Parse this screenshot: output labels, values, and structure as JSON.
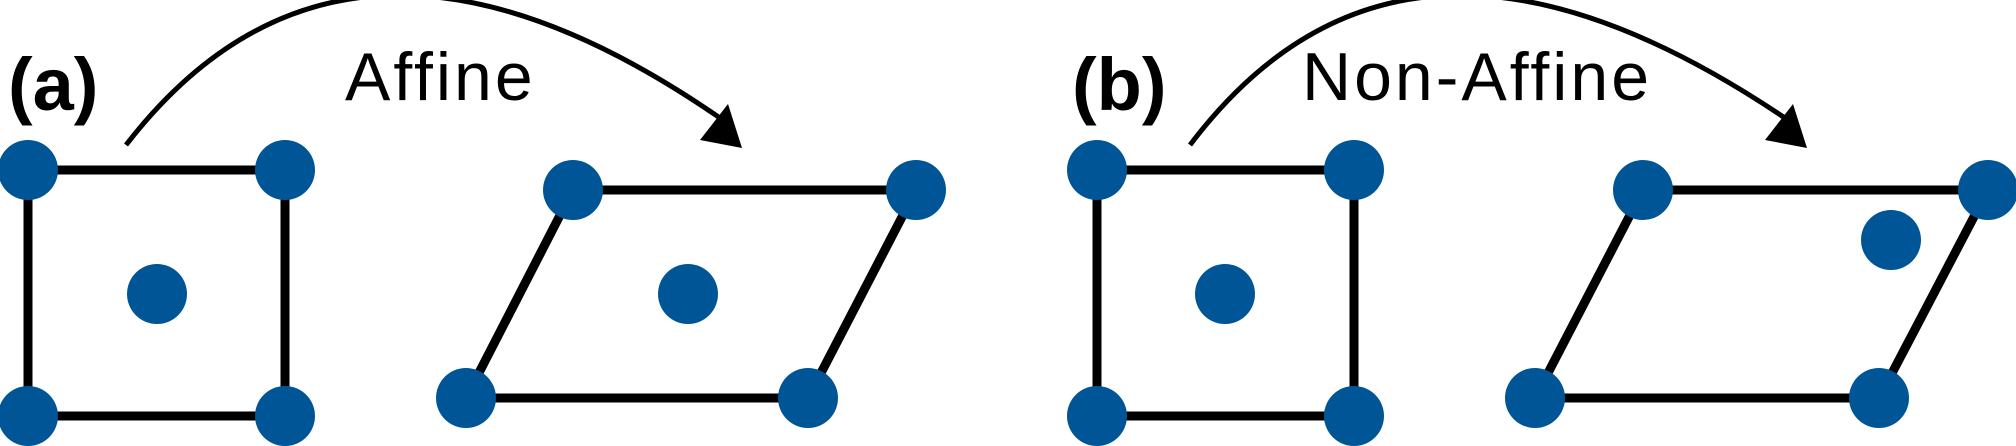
{
  "panels": [
    {
      "id": "a",
      "label": "(a)",
      "transform_label": "Affine"
    },
    {
      "id": "b",
      "label": "(b)",
      "transform_label": "Non-Affine"
    }
  ],
  "colors": {
    "node": "#005596",
    "edge": "#000000",
    "arrow": "#000000"
  }
}
